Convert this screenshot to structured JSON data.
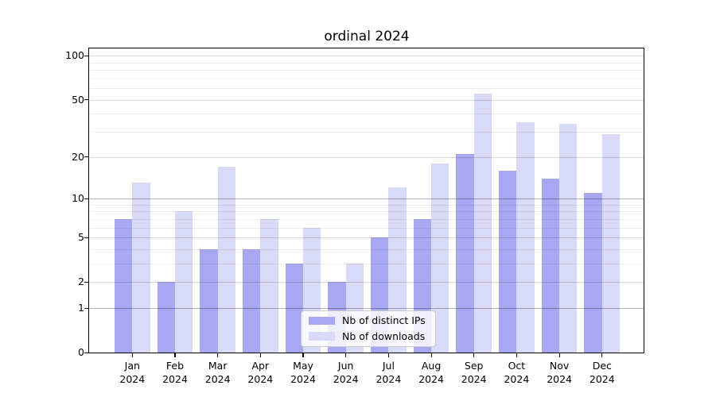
{
  "title": "ordinal 2024",
  "colors": {
    "distinct_ips_bar": "#a8a8f2",
    "downloads_bar": "#d9d9f8",
    "grid_dark": "#b3b3b3",
    "grid_mid": "#d9d9d9",
    "grid_minor": "#ededed",
    "axis": "#000000",
    "legend_border": "#cccccc"
  },
  "legend": {
    "items": [
      {
        "label": "Nb of distinct IPs",
        "swatch": "distinct_ips_bar"
      },
      {
        "label": "Nb of downloads",
        "swatch": "downloads_bar"
      }
    ]
  },
  "chart_data": {
    "type": "bar",
    "title": "ordinal 2024",
    "xlabel": "",
    "ylabel": "",
    "y_scale": "log1p",
    "ylim": [
      0,
      112
    ],
    "grid": "on",
    "legend_position": "lower center",
    "categories": [
      "Jan",
      "Feb",
      "Mar",
      "Apr",
      "May",
      "Jun",
      "Jul",
      "Aug",
      "Sep",
      "Oct",
      "Nov",
      "Dec"
    ],
    "x_year": "2024",
    "series": [
      {
        "name": "Nb of distinct IPs",
        "values": [
          7,
          2,
          4,
          4,
          3,
          2,
          5,
          7,
          21,
          16,
          14,
          11
        ]
      },
      {
        "name": "Nb of downloads",
        "values": [
          13,
          8,
          17,
          7,
          6,
          3,
          12,
          18,
          55,
          35,
          34,
          29
        ]
      }
    ],
    "yticks": [
      0,
      1,
      2,
      5,
      10,
      20,
      50,
      100
    ],
    "grid_dark_ticks": [
      1,
      10
    ],
    "grid_mid_ticks": [
      2,
      5,
      20,
      50,
      100
    ],
    "grid_minor_ticks": [
      3,
      4,
      6,
      7,
      8,
      9,
      30,
      40,
      60,
      70,
      80,
      90
    ]
  }
}
